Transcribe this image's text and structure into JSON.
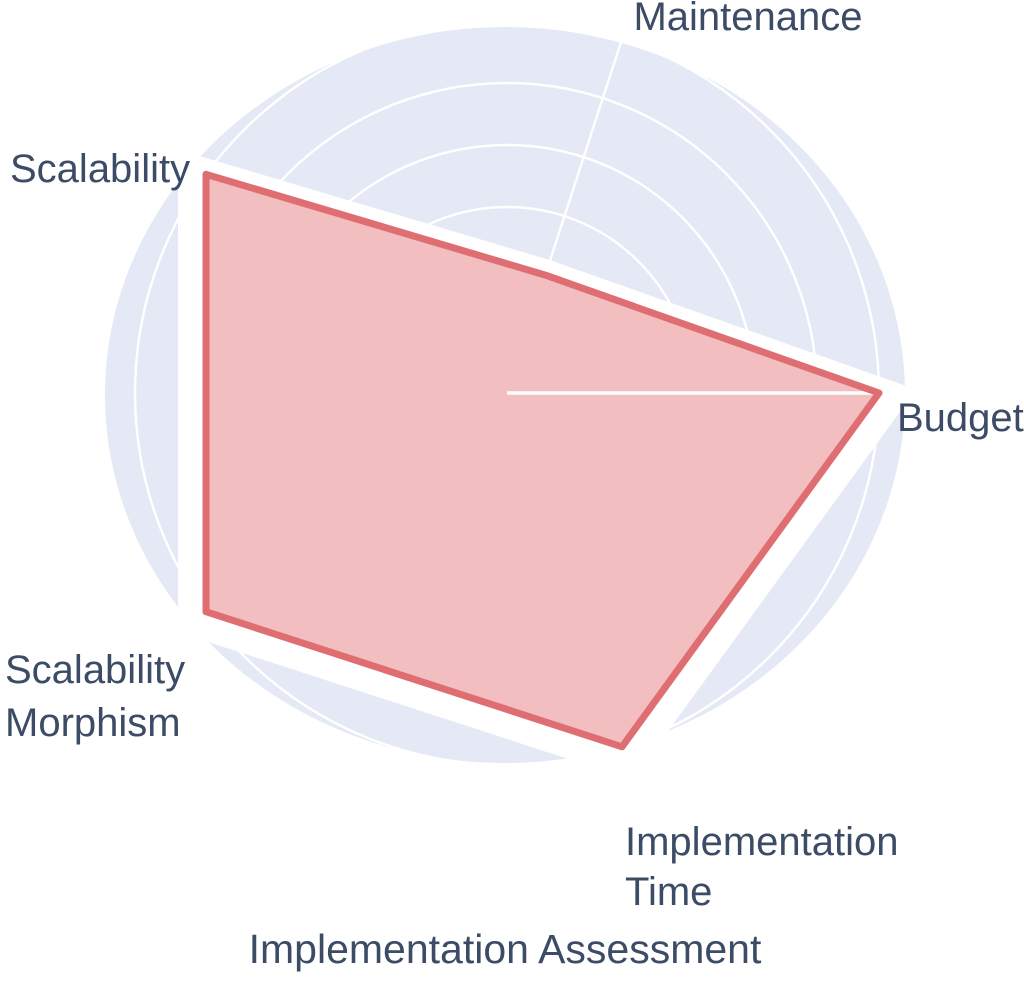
{
  "chart_data": {
    "type": "radar",
    "categories": [
      "Maintenance",
      "Budget",
      "Implementation Time",
      "Scalability Morphism",
      "Scalability"
    ],
    "values": [
      2,
      6,
      6,
      6,
      6
    ],
    "angles_deg": [
      72,
      0,
      288,
      216,
      144
    ],
    "scale": {
      "min": 0,
      "max": 6,
      "ring_step": 1,
      "rings": 6
    },
    "title": "Implementation Assessment",
    "legend": "none",
    "grid": true,
    "highlight_axis": "Budget"
  },
  "axis_labels": {
    "maintenance": {
      "lines": [
        "Maintenance"
      ]
    },
    "budget": {
      "lines": [
        "Budget"
      ]
    },
    "implementation_time": {
      "lines": [
        "Implementation",
        "Time"
      ]
    },
    "scalability_morphism": {
      "lines": [
        "Scalability",
        "Morphism"
      ]
    },
    "scalability": {
      "lines": [
        "Scalability"
      ]
    }
  },
  "colors": {
    "background": "#ffffff",
    "disc": "#e4e9f5",
    "gridline": "#ffffff",
    "series_stroke": "#df6e72",
    "series_fill": "rgba(223,100,106,0.42)",
    "halo": "#ffffff",
    "label_text": "#3c4b66"
  }
}
